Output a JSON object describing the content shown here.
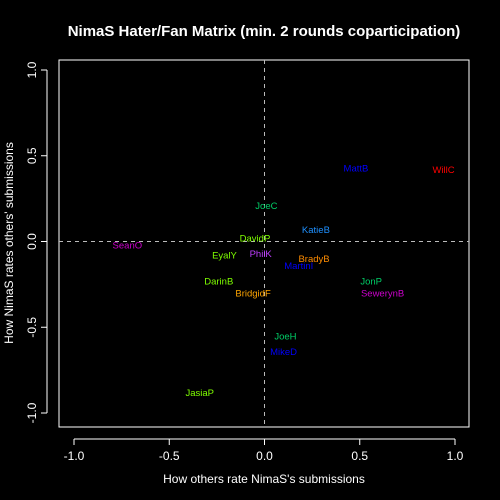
{
  "chart_data": {
    "type": "scatter",
    "title": "NimaS Hater/Fan Matrix (min. 2 rounds coparticipation)",
    "xlabel": "How others rate NimaS's submissions",
    "ylabel": "How NimaS rates others' submissions",
    "xlim": [
      -1.0,
      1.0
    ],
    "ylim": [
      -1.0,
      1.0
    ],
    "x_ticks": [
      -1.0,
      -0.5,
      0.0,
      0.5,
      1.0
    ],
    "y_ticks": [
      -1.0,
      -0.5,
      0.0,
      0.5,
      1.0
    ],
    "x_tick_labels": [
      "-1.0",
      "-0.5",
      "0.0",
      "0.5",
      "1.0"
    ],
    "y_tick_labels": [
      "-1.0",
      "-0.5",
      "0.0",
      "0.5",
      "1.0"
    ],
    "reference_lines": {
      "x": 0,
      "y": 0
    },
    "grid": false,
    "points": [
      {
        "label": "MattB",
        "x": 0.48,
        "y": 0.43,
        "color": "#0000ff"
      },
      {
        "label": "WillC",
        "x": 0.94,
        "y": 0.42,
        "color": "#ff0000"
      },
      {
        "label": "JoeC",
        "x": 0.01,
        "y": 0.21,
        "color": "#00cd66"
      },
      {
        "label": "KatieB",
        "x": 0.27,
        "y": 0.07,
        "color": "#1e90ff"
      },
      {
        "label": "SeanO",
        "x": -0.72,
        "y": -0.02,
        "color": "#cd00cd"
      },
      {
        "label": "DavidP",
        "x": -0.05,
        "y": 0.02,
        "color": "#7fff00"
      },
      {
        "label": "PhilK",
        "x": -0.02,
        "y": -0.07,
        "color": "#bf3eff"
      },
      {
        "label": "EyalY",
        "x": -0.21,
        "y": -0.08,
        "color": "#7fff00"
      },
      {
        "label": "BradyB",
        "x": 0.26,
        "y": -0.1,
        "color": "#ff8c00"
      },
      {
        "label": "MartinI",
        "x": 0.18,
        "y": -0.14,
        "color": "#0000ff"
      },
      {
        "label": "DarinB",
        "x": -0.24,
        "y": -0.23,
        "color": "#7fff00"
      },
      {
        "label": "JonP",
        "x": 0.56,
        "y": -0.23,
        "color": "#00cd66"
      },
      {
        "label": "BridgidF",
        "x": -0.06,
        "y": -0.3,
        "color": "#ffa500"
      },
      {
        "label": "SewerynB",
        "x": 0.62,
        "y": -0.3,
        "color": "#cd00cd"
      },
      {
        "label": "JoeH",
        "x": 0.11,
        "y": -0.55,
        "color": "#00cd66"
      },
      {
        "label": "MikeD",
        "x": 0.1,
        "y": -0.64,
        "color": "#0000ff"
      },
      {
        "label": "JasiaP",
        "x": -0.34,
        "y": -0.88,
        "color": "#7fff00"
      }
    ]
  }
}
